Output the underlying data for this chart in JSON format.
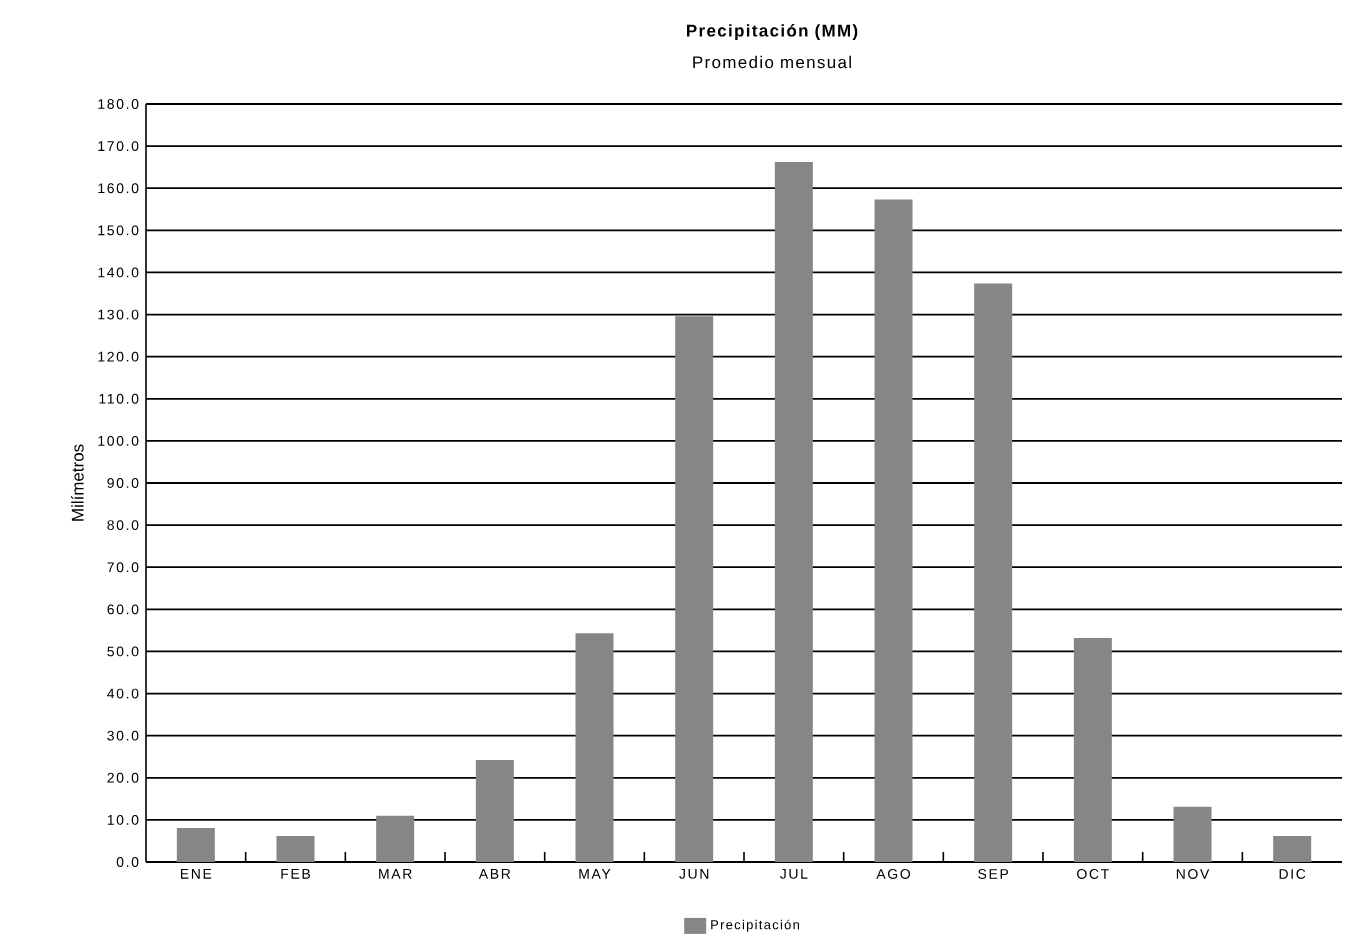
{
  "chart_data": {
    "type": "bar",
    "title": "Precipitación (MM)",
    "subtitle": "Promedio mensual",
    "ylabel": "Milímetros",
    "categories": [
      "ENE",
      "FEB",
      "MAR",
      "ABR",
      "MAY",
      "JUN",
      "JUL",
      "AGO",
      "SEP",
      "OCT",
      "NOV",
      "DIC"
    ],
    "series": [
      {
        "name": "Precipitación",
        "color": "#868686",
        "values": [
          8.1,
          6.2,
          11.0,
          24.2,
          54.3,
          129.6,
          166.2,
          157.3,
          137.4,
          53.2,
          13.1,
          6.2
        ]
      }
    ],
    "ylim": [
      0,
      180
    ],
    "yticks": [
      {
        "value": 0,
        "label": "0.0"
      },
      {
        "value": 10,
        "label": "10.0"
      },
      {
        "value": 20,
        "label": "20.0"
      },
      {
        "value": 30,
        "label": "30.0"
      },
      {
        "value": 40,
        "label": "40.0"
      },
      {
        "value": 50,
        "label": "50.0"
      },
      {
        "value": 60,
        "label": "60.0"
      },
      {
        "value": 70,
        "label": "70.0"
      },
      {
        "value": 80,
        "label": "80.0"
      },
      {
        "value": 90,
        "label": "90.0"
      },
      {
        "value": 100,
        "label": "100.0"
      },
      {
        "value": 110,
        "label": "110.0"
      },
      {
        "value": 120,
        "label": "120.0"
      },
      {
        "value": 130,
        "label": "130.0"
      },
      {
        "value": 140,
        "label": "140.0"
      },
      {
        "value": 150,
        "label": "150.0"
      },
      {
        "value": 160,
        "label": "160.0"
      },
      {
        "value": 170,
        "label": "170.0"
      },
      {
        "value": 180,
        "label": "180.0"
      }
    ],
    "grid": "y",
    "legend": "bottom"
  }
}
